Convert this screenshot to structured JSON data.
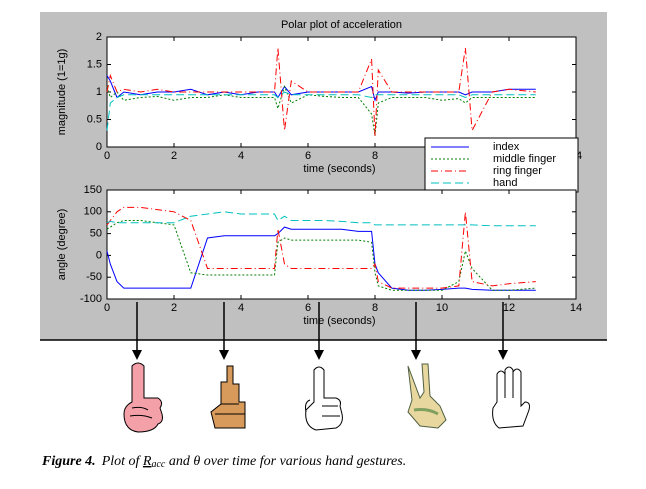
{
  "chart_data": [
    {
      "type": "line",
      "title": "Polar plot of acceleration",
      "x_label": "time (seconds)",
      "y_label": "magnitude (1=1g)",
      "xlim": [
        0,
        14
      ],
      "xticks": [
        0,
        2,
        4,
        6,
        8,
        10,
        12,
        14
      ],
      "ylim": [
        0,
        2
      ],
      "yticks": [
        0,
        0.5,
        1,
        1.5,
        2
      ],
      "x": [
        0,
        0.1,
        0.3,
        0.5,
        1,
        1.5,
        2,
        2.5,
        3,
        3.5,
        4,
        4.5,
        5,
        5.1,
        5.3,
        5.5,
        6,
        6.5,
        7,
        7.5,
        7.9,
        8,
        8.1,
        8.5,
        9,
        9.5,
        10,
        10.5,
        10.7,
        10.9,
        11.5,
        12,
        12.8
      ],
      "series": [
        {
          "name": "index",
          "color": "#0000ff",
          "values": [
            1.3,
            1.2,
            0.9,
            1.0,
            0.95,
            1.0,
            1.0,
            1.05,
            0.95,
            1.0,
            0.95,
            1.0,
            1.0,
            0.9,
            1.1,
            0.95,
            1.0,
            1.0,
            1.0,
            1.0,
            1.1,
            0.85,
            1.0,
            1.0,
            0.98,
            1.0,
            1.0,
            1.0,
            0.95,
            1.0,
            1.0,
            1.05,
            1.05
          ]
        },
        {
          "name": "middle finger",
          "color": "#008000",
          "values": [
            1.1,
            0.9,
            1.0,
            0.85,
            0.9,
            0.92,
            0.85,
            0.9,
            0.9,
            0.95,
            0.9,
            0.9,
            0.9,
            0.7,
            1.1,
            0.8,
            0.95,
            0.92,
            0.9,
            0.9,
            0.6,
            0.2,
            0.8,
            0.9,
            0.9,
            0.9,
            0.85,
            0.88,
            0.8,
            0.9,
            0.9,
            0.9,
            0.9
          ]
        },
        {
          "name": "ring finger",
          "color": "#ff0000",
          "values": [
            1.0,
            1.3,
            1.0,
            1.05,
            1.0,
            1.05,
            1.0,
            1.0,
            1.0,
            1.0,
            1.0,
            1.0,
            1.0,
            1.8,
            0.3,
            1.2,
            1.0,
            1.0,
            1.0,
            1.0,
            1.6,
            0.2,
            1.4,
            1.0,
            1.0,
            1.0,
            1.0,
            1.0,
            1.8,
            0.3,
            1.0,
            1.05,
            1.0
          ]
        },
        {
          "name": "hand",
          "color": "#00c0c0",
          "values": [
            0.3,
            0.8,
            0.9,
            0.95,
            0.95,
            0.95,
            0.95,
            0.95,
            0.95,
            0.95,
            0.95,
            0.95,
            0.95,
            0.9,
            1.0,
            0.95,
            0.95,
            0.95,
            0.95,
            0.95,
            0.9,
            0.95,
            0.95,
            0.95,
            0.95,
            0.95,
            0.95,
            0.95,
            0.9,
            0.95,
            0.95,
            0.95,
            0.95
          ]
        }
      ]
    },
    {
      "type": "line",
      "x_label": "time (seconds)",
      "y_label": "angle (degree)",
      "xlim": [
        0,
        14
      ],
      "xticks": [
        0,
        2,
        4,
        6,
        8,
        10,
        12,
        14
      ],
      "ylim": [
        -100,
        150
      ],
      "yticks": [
        -100,
        -50,
        0,
        50,
        100,
        150
      ],
      "x": [
        0,
        0.1,
        0.3,
        0.5,
        1,
        1.5,
        2,
        2.5,
        3,
        3.5,
        4,
        4.5,
        5,
        5.1,
        5.3,
        5.5,
        6,
        6.5,
        7,
        7.5,
        7.9,
        8,
        8.1,
        8.5,
        9,
        9.5,
        10,
        10.5,
        10.7,
        10.9,
        11.5,
        12,
        12.8
      ],
      "series": [
        {
          "color": "#0000ff",
          "values": [
            10,
            -20,
            -60,
            -75,
            -75,
            -75,
            -75,
            -75,
            40,
            45,
            45,
            45,
            45,
            50,
            65,
            60,
            60,
            60,
            60,
            55,
            55,
            -20,
            -40,
            -75,
            -80,
            -80,
            -78,
            -75,
            -75,
            -78,
            -80,
            -80,
            -80
          ]
        },
        {
          "color": "#008000",
          "values": [
            60,
            65,
            75,
            80,
            80,
            75,
            70,
            -40,
            -45,
            -45,
            -45,
            -45,
            -45,
            30,
            40,
            35,
            35,
            35,
            35,
            35,
            30,
            -40,
            -70,
            -80,
            -80,
            -80,
            -80,
            -60,
            10,
            -30,
            -80,
            -80,
            -75
          ]
        },
        {
          "color": "#ff0000",
          "values": [
            70,
            80,
            100,
            110,
            110,
            105,
            100,
            80,
            -30,
            -30,
            -30,
            -30,
            -30,
            60,
            -20,
            -30,
            -30,
            -30,
            -30,
            -30,
            -30,
            -20,
            -60,
            -75,
            -75,
            -75,
            -75,
            -70,
            100,
            -60,
            -70,
            -65,
            -60
          ]
        },
        {
          "color": "#00c0c0",
          "values": [
            75,
            78,
            75,
            75,
            75,
            75,
            75,
            90,
            95,
            100,
            95,
            95,
            95,
            80,
            90,
            80,
            80,
            80,
            78,
            75,
            75,
            70,
            70,
            70,
            70,
            70,
            70,
            70,
            70,
            70,
            68,
            68,
            68
          ]
        }
      ]
    }
  ],
  "caption": {
    "label": "Figure 4.",
    "before": "Plot of ",
    "symbol": "R",
    "subscript": "acc",
    "after": " and θ over time for various hand gestures."
  }
}
